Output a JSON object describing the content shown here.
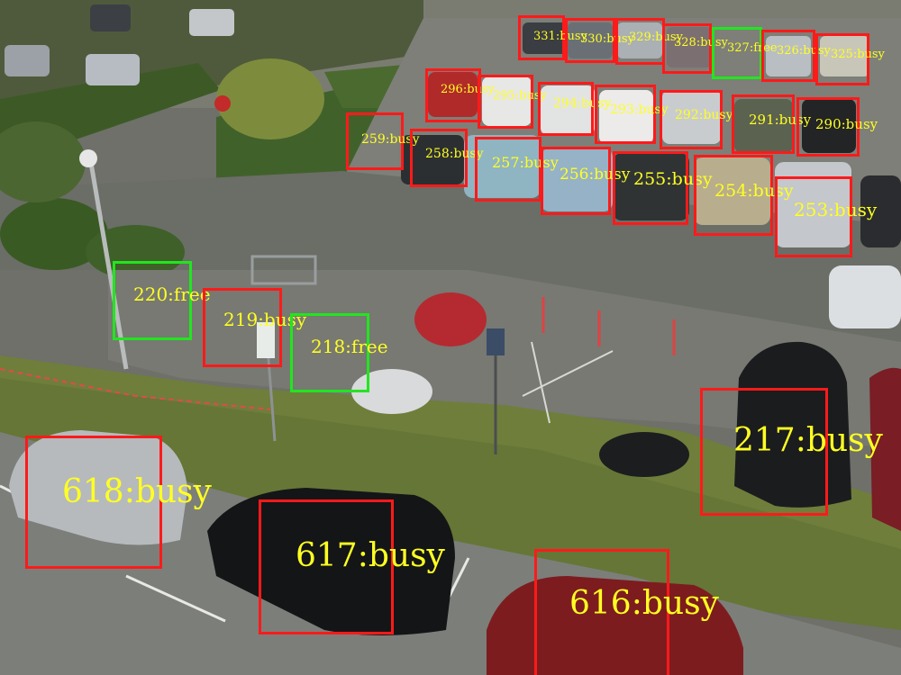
{
  "colors": {
    "busy": "#ff1a1a",
    "free": "#22e51f",
    "label": "#ffff22"
  },
  "slots": [
    {
      "id": "331",
      "status": "busy",
      "label": "331:busy"
    },
    {
      "id": "330",
      "status": "busy",
      "label": "330:busy"
    },
    {
      "id": "329",
      "status": "busy",
      "label": "329:busy"
    },
    {
      "id": "328",
      "status": "busy",
      "label": "328:busy"
    },
    {
      "id": "327",
      "status": "free",
      "label": "327:free"
    },
    {
      "id": "326",
      "status": "busy",
      "label": "326:busy"
    },
    {
      "id": "325",
      "status": "busy",
      "label": "325:busy"
    },
    {
      "id": "296",
      "status": "busy",
      "label": "296:busy"
    },
    {
      "id": "295",
      "status": "busy",
      "label": "295:busy"
    },
    {
      "id": "294",
      "status": "busy",
      "label": "294:busy"
    },
    {
      "id": "293",
      "status": "busy",
      "label": "293:busy"
    },
    {
      "id": "292",
      "status": "busy",
      "label": "292:busy"
    },
    {
      "id": "291",
      "status": "busy",
      "label": "291:busy"
    },
    {
      "id": "290",
      "status": "busy",
      "label": "290:busy"
    },
    {
      "id": "259",
      "status": "busy",
      "label": "259:busy"
    },
    {
      "id": "258",
      "status": "busy",
      "label": "258:busy"
    },
    {
      "id": "257",
      "status": "busy",
      "label": "257:busy"
    },
    {
      "id": "256",
      "status": "busy",
      "label": "256:busy"
    },
    {
      "id": "255",
      "status": "busy",
      "label": "255:busy"
    },
    {
      "id": "254",
      "status": "busy",
      "label": "254:busy"
    },
    {
      "id": "253",
      "status": "busy",
      "label": "253:busy"
    },
    {
      "id": "220",
      "status": "free",
      "label": "220:free"
    },
    {
      "id": "219",
      "status": "busy",
      "label": "219:busy"
    },
    {
      "id": "218",
      "status": "free",
      "label": "218:free"
    },
    {
      "id": "217",
      "status": "busy",
      "label": "217:busy"
    },
    {
      "id": "618",
      "status": "busy",
      "label": "618:busy"
    },
    {
      "id": "617",
      "status": "busy",
      "label": "617:busy"
    },
    {
      "id": "616",
      "status": "busy",
      "label": "616:busy"
    }
  ]
}
